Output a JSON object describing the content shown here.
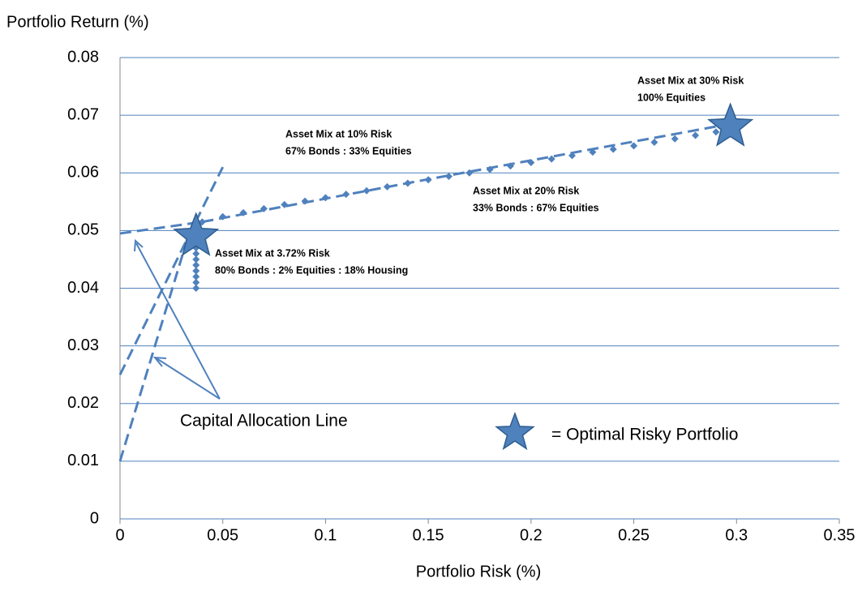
{
  "chart_data": {
    "type": "scatter",
    "y_label": "Portfolio Return (%)",
    "x_label": "Portfolio Risk (%)",
    "xlim": [
      0,
      0.35
    ],
    "ylim": [
      0,
      0.08
    ],
    "xticks": [
      0,
      0.05,
      0.1,
      0.15,
      0.2,
      0.25,
      0.3,
      0.35
    ],
    "yticks": [
      0,
      0.01,
      0.02,
      0.03,
      0.04,
      0.05,
      0.06,
      0.07,
      0.08
    ],
    "grid": true,
    "series": [
      {
        "color": "#4f81bd",
        "x": [
          0.037,
          0.037,
          0.037,
          0.037,
          0.037,
          0.037,
          0.037,
          0.037,
          0.037,
          0.037,
          0.037,
          0.038,
          0.04,
          0.05,
          0.06,
          0.07,
          0.08,
          0.09,
          0.1,
          0.11,
          0.12,
          0.13,
          0.14,
          0.15,
          0.16,
          0.17,
          0.18,
          0.19,
          0.2,
          0.21,
          0.22,
          0.23,
          0.24,
          0.25,
          0.26,
          0.27,
          0.28,
          0.29
        ],
        "y": [
          0.04,
          0.041,
          0.042,
          0.043,
          0.044,
          0.045,
          0.046,
          0.047,
          0.048,
          0.049,
          0.05,
          0.051,
          0.0515,
          0.0524,
          0.0531,
          0.0538,
          0.0545,
          0.0551,
          0.0557,
          0.0563,
          0.0569,
          0.0576,
          0.0582,
          0.0588,
          0.0594,
          0.06,
          0.0606,
          0.0612,
          0.0618,
          0.0624,
          0.063,
          0.0636,
          0.0641,
          0.0647,
          0.0653,
          0.0659,
          0.0665,
          0.0671
        ]
      }
    ],
    "highlights": {
      "color": "#4f81bd",
      "x": [
        0.037,
        0.297
      ],
      "y": [
        0.049,
        0.068
      ]
    },
    "lines": [
      {
        "color": "#4f81bd",
        "x": [
          0,
          0.04
        ],
        "y": [
          0.0495,
          0.0515
        ]
      },
      {
        "color": "#4f81bd",
        "x": [
          0,
          0.05
        ],
        "y": [
          0.025,
          0.061
        ]
      },
      {
        "color": "#4f81bd",
        "x": [
          0,
          0.034
        ],
        "y": [
          0.01,
          0.05
        ]
      },
      {
        "color": "#4f81bd",
        "x": [
          0.04,
          0.15,
          0.297
        ],
        "y": [
          0.0515,
          0.0589,
          0.0685
        ]
      }
    ],
    "annotations": [
      [
        "Asset Mix at 30% Risk",
        "100% Equities"
      ],
      [
        "Asset Mix at 10% Risk",
        "67% Bonds : 33% Equities"
      ],
      [
        "Asset Mix at 20% Risk",
        "33% Bonds : 67% Equities"
      ],
      [
        "Asset Mix at  3.72% Risk",
        "80% Bonds : 2% Equities : 18% Housing"
      ]
    ],
    "cal_label": "Capital Allocation Line",
    "legend_label": "= Optimal Risky Portfolio"
  }
}
